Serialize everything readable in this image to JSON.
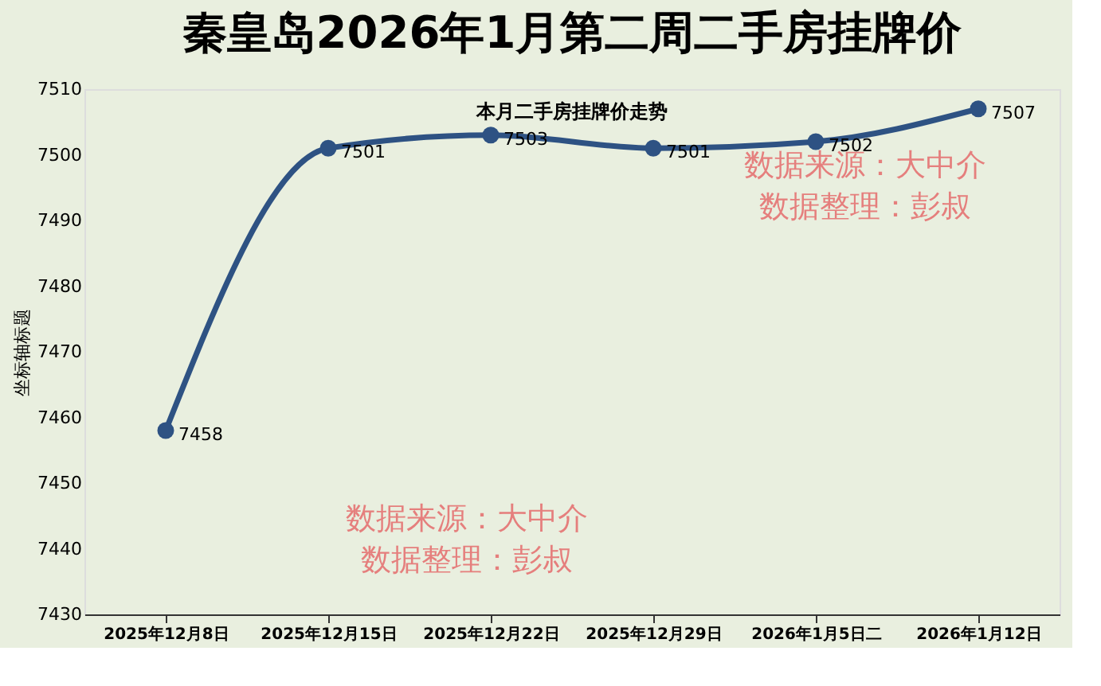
{
  "chart_data": {
    "type": "line",
    "title": "秦皇岛2026年1月第二周二手房挂牌价",
    "subtitle": "本月二手房挂牌价走势",
    "ylabel": "坐标轴标题",
    "categories": [
      "2025年12月8日",
      "2025年12月15日",
      "2025年12月22日",
      "2025年12月29日",
      "2026年1月5日二",
      "2026年1月12日"
    ],
    "series": [
      {
        "color": "#2e5283",
        "values": [
          7458,
          7501,
          7503,
          7501,
          7502,
          7507
        ]
      }
    ],
    "ylim": [
      7430,
      7510
    ],
    "yticks": [
      7430,
      7440,
      7450,
      7460,
      7470,
      7480,
      7490,
      7500,
      7510
    ],
    "marker": "circle",
    "data_labels": true,
    "annotations": [
      "数据来源：大中介",
      "数据整理：彭叔",
      "数据来源：大中介",
      "数据整理：彭叔"
    ]
  }
}
